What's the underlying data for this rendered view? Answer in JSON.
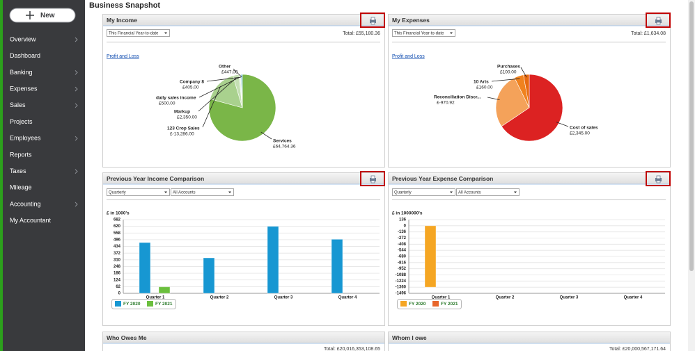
{
  "sidebar": {
    "new_button": "New",
    "menu": [
      "Overview",
      "Dashboard",
      "Banking",
      "Expenses",
      "Sales",
      "Projects",
      "Employees",
      "Reports",
      "Taxes",
      "Mileage",
      "Accounting",
      "My Accountant"
    ]
  },
  "page_title": "Business Snapshot",
  "income": {
    "title": "My Income",
    "period": "This Financial Year-to-date",
    "total": "Total: £55,180.36",
    "link": "Profit and Loss",
    "chart": {
      "type": "pie",
      "labels": [
        "Services",
        "123 Crop Sales",
        "Markup",
        "daily sales income",
        "Company 8",
        "Other"
      ],
      "values": [
        64764.36,
        -13286,
        2350,
        500,
        405,
        447
      ],
      "value_labels": [
        "£64,764.36",
        "£-13,286.00",
        "£2,350.00",
        "£500.00",
        "£405.00",
        "£447.00"
      ],
      "colors": [
        "#7ab648",
        "#a9d18e",
        "#c5e0b4",
        "#d9ead3",
        "#e2efda",
        "#1a9bd7"
      ]
    }
  },
  "expenses": {
    "title": "My Expenses",
    "period": "This Financial Year-to-date",
    "total": "Total: £1,634.08",
    "link": "Profit and Loss",
    "chart": {
      "type": "pie",
      "labels": [
        "Cost of sales",
        "Reconciliation Discr...",
        "10 Arts",
        "Purchases"
      ],
      "values": [
        2345,
        -970.92,
        160,
        100
      ],
      "value_labels": [
        "£2,345.00",
        "£-970.92",
        "£160.00",
        "£100.00"
      ],
      "colors": [
        "#dc2222",
        "#f4a25a",
        "#f0821e",
        "#e86a10"
      ]
    }
  },
  "income_comparison": {
    "title": "Previous Year Income Comparison",
    "filters": [
      "Quarterly",
      "All Accounts"
    ],
    "chart": {
      "type": "bar",
      "axis_label": "£ in 1000's",
      "categories": [
        "Quarter 1",
        "Quarter 2",
        "Quarter 3",
        "Quarter 4"
      ],
      "series": [
        {
          "name": "FY 2020",
          "color": "#1797d2",
          "values": [
            470,
            328,
            620,
            500
          ]
        },
        {
          "name": "FY 2021",
          "color": "#6bbf3e",
          "values": [
            60,
            null,
            null,
            null
          ]
        }
      ],
      "ylim": [
        0,
        682
      ],
      "yticks": [
        0,
        62,
        124,
        186,
        248,
        310,
        372,
        434,
        496,
        558,
        620,
        682
      ],
      "grid": true
    }
  },
  "expense_comparison": {
    "title": "Previous Year Expense Comparison",
    "filters": [
      "Quarterly",
      "All Accounts"
    ],
    "chart": {
      "type": "bar",
      "axis_label": "£ in 1000000's",
      "categories": [
        "Quarter 1",
        "Quarter 2",
        "Quarter 3",
        "Quarter 4"
      ],
      "series": [
        {
          "name": "FY 2020",
          "color": "#f5a623",
          "values": [
            -1360,
            null,
            null,
            null
          ]
        },
        {
          "name": "FY 2021",
          "color": "#e8662a",
          "values": [
            null,
            null,
            null,
            null
          ]
        }
      ],
      "ylim": [
        -1496,
        136
      ],
      "yticks": [
        136,
        0,
        -136,
        -272,
        -408,
        -544,
        -680,
        -816,
        -952,
        -1088,
        -1224,
        -1360,
        -1496
      ],
      "grid": true
    }
  },
  "owes_me": {
    "title": "Who Owes Me",
    "total": "Total: £20,016,353,108.65"
  },
  "i_owe": {
    "title": "Whom I owe",
    "total": "Total: £20,000,567,171.64"
  }
}
